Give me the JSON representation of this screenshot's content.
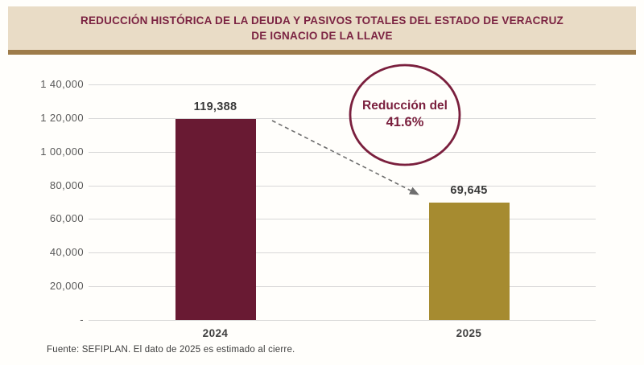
{
  "header": {
    "title_line1": "REDUCCIÓN HISTÓRICA DE LA DEUDA Y PASIVOS TOTALES DEL ESTADO DE VERACRUZ",
    "title_line2": "DE IGNACIO DE LA LLAVE"
  },
  "chart_data": {
    "type": "bar",
    "title": "Reducción histórica de la deuda y pasivos totales del Estado de Veracruz de Ignacio de la Llave",
    "categories": [
      "2024",
      "2025"
    ],
    "values": [
      119388,
      69645
    ],
    "value_labels": [
      "119,388",
      "69,645"
    ],
    "xlabel": "",
    "ylabel": "",
    "ylim": [
      0,
      140000
    ],
    "ytick_step": 20000,
    "ytick_labels": [
      "-",
      "20,000",
      "40,000",
      "60,000",
      "80,000",
      "1 00,000",
      "1 20,000",
      "1 40,000"
    ],
    "grid": "horizontal",
    "legend": "none",
    "annotation": {
      "line1": "Reducción del",
      "line2": "41.6%",
      "reduction_percent": 41.6
    }
  },
  "colors": {
    "bar_2024": "#691a33",
    "bar_2025": "#a68b30",
    "banner_bg": "#e9dcc6",
    "banner_border": "#9e7c4a",
    "title_text": "#7b2342",
    "annotation_stroke": "#7a1f3d",
    "arrow_gray": "#6e6e6e",
    "gridline": "#d8d8d8"
  },
  "footer": {
    "source": "Fuente: SEFIPLAN. El dato de 2025 es estimado al cierre."
  }
}
